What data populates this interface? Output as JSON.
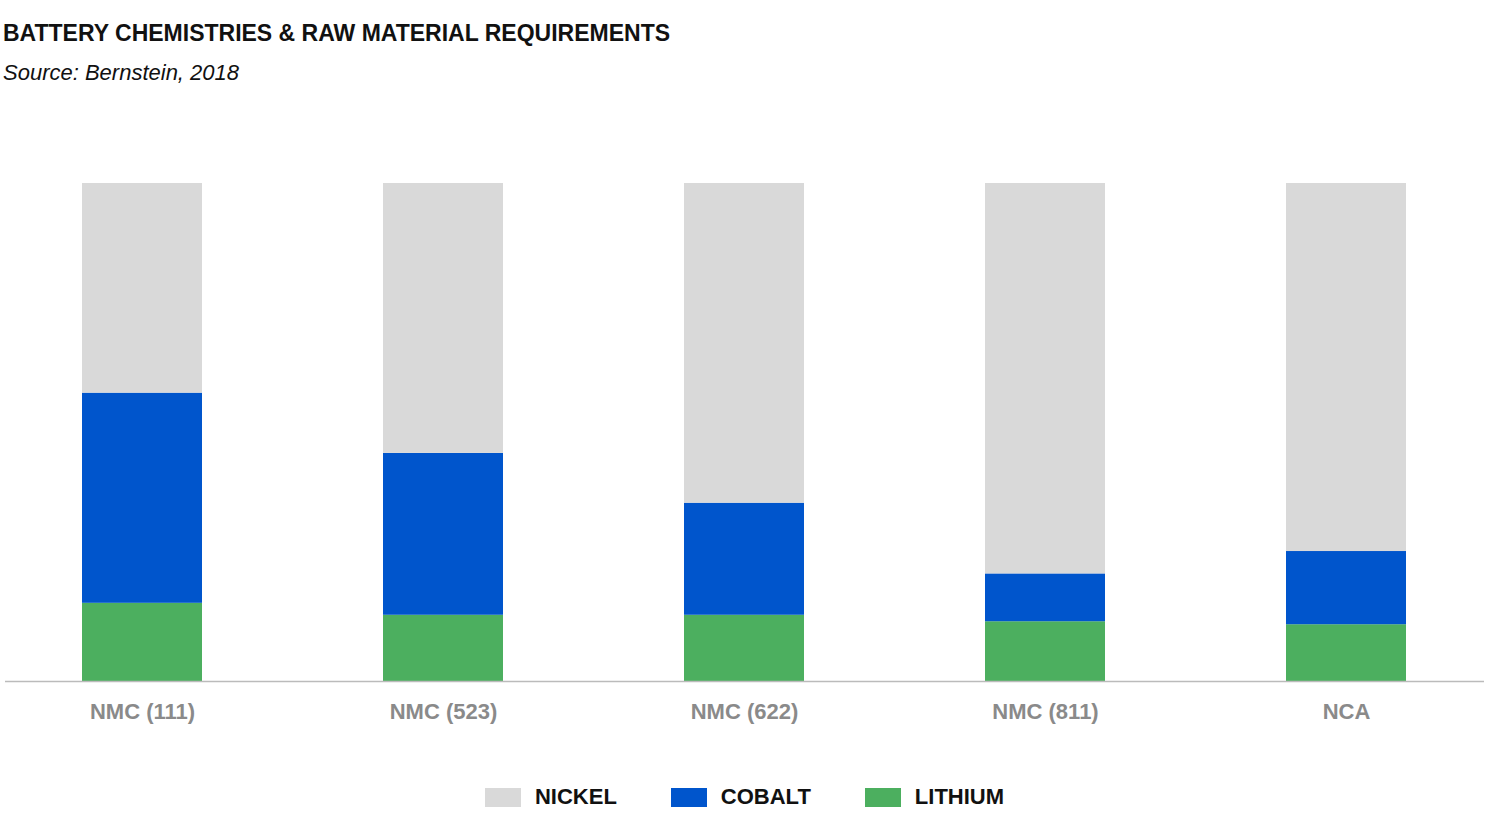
{
  "chart_data": {
    "type": "bar",
    "title": "BATTERY CHEMISTRIES & RAW MATERIAL REQUIREMENTS",
    "subtitle": "Source: Bernstein, 2018",
    "categories": [
      "NMC (111)",
      "NMC (523)",
      "NMC (622)",
      "NMC (811)",
      "NCA"
    ],
    "series": [
      {
        "name": "NICKEL",
        "color": "#d9d9d9",
        "values": [
          42.1,
          54.2,
          64.2,
          78.4,
          73.9
        ]
      },
      {
        "name": "COBALT",
        "color": "#0055cc",
        "values": [
          42.2,
          32.5,
          22.5,
          9.6,
          14.7
        ]
      },
      {
        "name": "LITHIUM",
        "color": "#4caf5f",
        "values": [
          15.7,
          13.3,
          13.3,
          12.0,
          11.4
        ]
      }
    ],
    "stacked": true,
    "ylim": [
      0,
      100
    ],
    "tick_labels": "x",
    "legend": "bottom"
  }
}
